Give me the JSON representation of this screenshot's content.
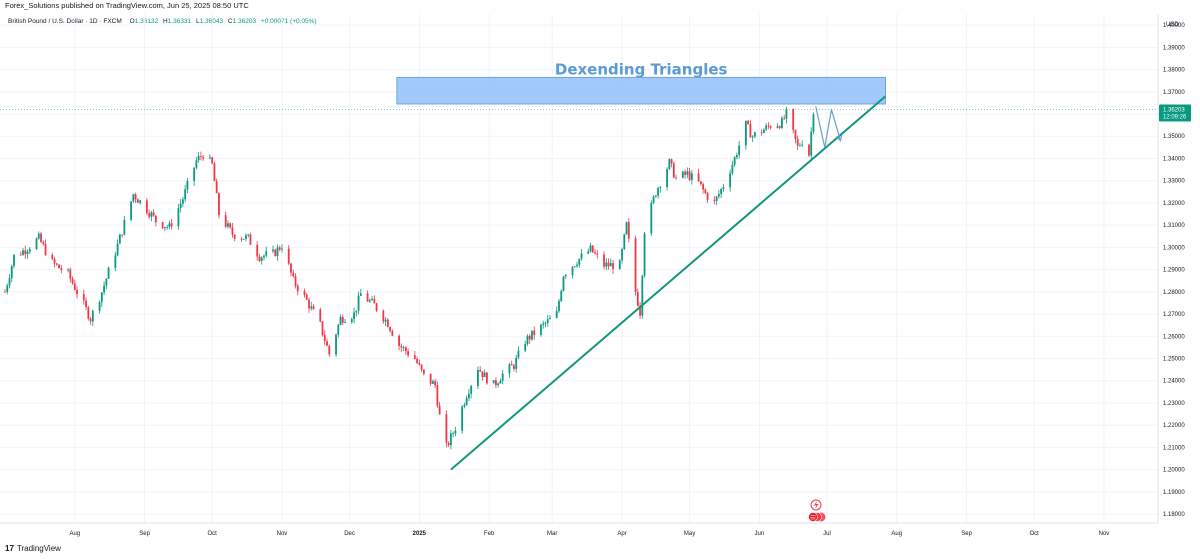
{
  "header": {
    "publish_line": "Forex_Solutions published on TradingView.com, Jun 25, 2025 08:50 UTC"
  },
  "legend": {
    "pair": "British Pound / U.S. Dollar · 1D · FXCM",
    "o_label": "O",
    "o_value": "1.36132",
    "h_label": "H",
    "h_value": "1.36331",
    "l_label": "L",
    "l_value": "1.36043",
    "c_label": "C",
    "c_value": "1.36203",
    "change": "+0.00071 (+0.05%)"
  },
  "price_badge": {
    "price": "1.36203",
    "countdown": "12:09:26",
    "color": "#089981"
  },
  "footer": {
    "brand": "TradingView",
    "logo_glyph": "17"
  },
  "colors": {
    "up": "#089981",
    "down": "#f23645",
    "trendline": "#11977d",
    "zone_fill": "#90bff9",
    "zone_stroke": "#5b9bd5",
    "arrow": "#6a9fc8"
  },
  "chart_data": {
    "type": "candlestick",
    "symbol": "GBPUSD",
    "timeframe": "1D",
    "currency_label": "USD",
    "ylim": [
      1.176,
      1.405
    ],
    "y_ticks": [
      "1.40000",
      "1.39000",
      "1.38000",
      "1.37000",
      "1.36000",
      "1.35000",
      "1.34000",
      "1.33000",
      "1.32000",
      "1.31000",
      "1.30000",
      "1.29000",
      "1.28000",
      "1.27000",
      "1.26000",
      "1.25000",
      "1.24000",
      "1.23000",
      "1.22000",
      "1.21000",
      "1.20000",
      "1.19000",
      "1.18000"
    ],
    "x_axis": {
      "start": "2024-07-01",
      "end": "2025-11-25",
      "ticks": [
        {
          "label": "Aug",
          "date": "2024-08-01"
        },
        {
          "label": "Sep",
          "date": "2024-09-01"
        },
        {
          "label": "Oct",
          "date": "2024-10-01"
        },
        {
          "label": "Nov",
          "date": "2024-11-01"
        },
        {
          "label": "Dec",
          "date": "2024-12-01"
        },
        {
          "label": "2025",
          "date": "2025-01-01",
          "bold": true
        },
        {
          "label": "Feb",
          "date": "2025-02-01"
        },
        {
          "label": "Mar",
          "date": "2025-03-01"
        },
        {
          "label": "Apr",
          "date": "2025-04-01"
        },
        {
          "label": "May",
          "date": "2025-05-01"
        },
        {
          "label": "Jun",
          "date": "2025-06-01"
        },
        {
          "label": "Jul",
          "date": "2025-07-01"
        },
        {
          "label": "Aug",
          "date": "2025-08-01"
        },
        {
          "label": "Sep",
          "date": "2025-09-01"
        },
        {
          "label": "Oct",
          "date": "2025-10-01"
        },
        {
          "label": "Nov",
          "date": "2025-11-01"
        }
      ]
    },
    "price_path": [
      [
        "2024-07-01",
        1.28
      ],
      [
        "2024-07-05",
        1.296
      ],
      [
        "2024-07-10",
        1.299
      ],
      [
        "2024-07-16",
        1.304
      ],
      [
        "2024-07-22",
        1.293
      ],
      [
        "2024-07-29",
        1.288
      ],
      [
        "2024-08-05",
        1.274
      ],
      [
        "2024-08-08",
        1.268
      ],
      [
        "2024-08-13",
        1.28
      ],
      [
        "2024-08-20",
        1.301
      ],
      [
        "2024-08-27",
        1.324
      ],
      [
        "2024-09-03",
        1.316
      ],
      [
        "2024-09-06",
        1.312
      ],
      [
        "2024-09-12",
        1.309
      ],
      [
        "2024-09-18",
        1.322
      ],
      [
        "2024-09-24",
        1.339
      ],
      [
        "2024-09-27",
        1.342
      ],
      [
        "2024-10-01",
        1.337
      ],
      [
        "2024-10-04",
        1.315
      ],
      [
        "2024-10-10",
        1.306
      ],
      [
        "2024-10-17",
        1.304
      ],
      [
        "2024-10-22",
        1.296
      ],
      [
        "2024-10-28",
        1.297
      ],
      [
        "2024-11-01",
        1.301
      ],
      [
        "2024-11-06",
        1.285
      ],
      [
        "2024-11-12",
        1.276
      ],
      [
        "2024-11-18",
        1.265
      ],
      [
        "2024-11-22",
        1.252
      ],
      [
        "2024-11-27",
        1.268
      ],
      [
        "2024-12-03",
        1.27
      ],
      [
        "2024-12-06",
        1.279
      ],
      [
        "2024-12-12",
        1.274
      ],
      [
        "2024-12-18",
        1.266
      ],
      [
        "2024-12-23",
        1.256
      ],
      [
        "2024-12-30",
        1.25
      ],
      [
        "2025-01-03",
        1.242
      ],
      [
        "2025-01-08",
        1.238
      ],
      [
        "2025-01-10",
        1.224
      ],
      [
        "2025-01-13",
        1.21
      ],
      [
        "2025-01-17",
        1.219
      ],
      [
        "2025-01-22",
        1.234
      ],
      [
        "2025-01-27",
        1.246
      ],
      [
        "2025-01-30",
        1.242
      ],
      [
        "2025-02-03",
        1.238
      ],
      [
        "2025-02-07",
        1.243
      ],
      [
        "2025-02-12",
        1.247
      ],
      [
        "2025-02-17",
        1.258
      ],
      [
        "2025-02-24",
        1.264
      ],
      [
        "2025-03-03",
        1.27
      ],
      [
        "2025-03-06",
        1.288
      ],
      [
        "2025-03-12",
        1.294
      ],
      [
        "2025-03-18",
        1.299
      ],
      [
        "2025-03-24",
        1.292
      ],
      [
        "2025-03-31",
        1.292
      ],
      [
        "2025-04-03",
        1.31
      ],
      [
        "2025-04-07",
        1.28
      ],
      [
        "2025-04-09",
        1.271
      ],
      [
        "2025-04-11",
        1.308
      ],
      [
        "2025-04-16",
        1.325
      ],
      [
        "2025-04-22",
        1.338
      ],
      [
        "2025-04-25",
        1.331
      ],
      [
        "2025-04-30",
        1.333
      ],
      [
        "2025-05-05",
        1.329
      ],
      [
        "2025-05-08",
        1.324
      ],
      [
        "2025-05-12",
        1.32
      ],
      [
        "2025-05-16",
        1.328
      ],
      [
        "2025-05-21",
        1.34
      ],
      [
        "2025-05-26",
        1.355
      ],
      [
        "2025-05-29",
        1.35
      ],
      [
        "2025-06-03",
        1.353
      ],
      [
        "2025-06-06",
        1.355
      ],
      [
        "2025-06-11",
        1.356
      ],
      [
        "2025-06-13",
        1.36
      ],
      [
        "2025-06-18",
        1.345
      ],
      [
        "2025-06-20",
        1.348
      ],
      [
        "2025-06-23",
        1.342
      ],
      [
        "2025-06-25",
        1.362
      ]
    ],
    "current_price": 1.36203,
    "drawings": {
      "zone": {
        "from": "2024-12-22",
        "to": "2025-07-27",
        "top": 1.3765,
        "bottom": 1.3645,
        "label": "Dexending Triangles"
      },
      "trendline": {
        "from": [
          "2025-01-15",
          1.2
        ],
        "to": [
          "2025-07-27",
          1.368
        ]
      },
      "projection": [
        [
          "2025-06-26",
          1.3635
        ],
        [
          "2025-06-30",
          1.345
        ],
        [
          "2025-07-03",
          1.362
        ],
        [
          "2025-07-07",
          1.348
        ]
      ]
    }
  }
}
